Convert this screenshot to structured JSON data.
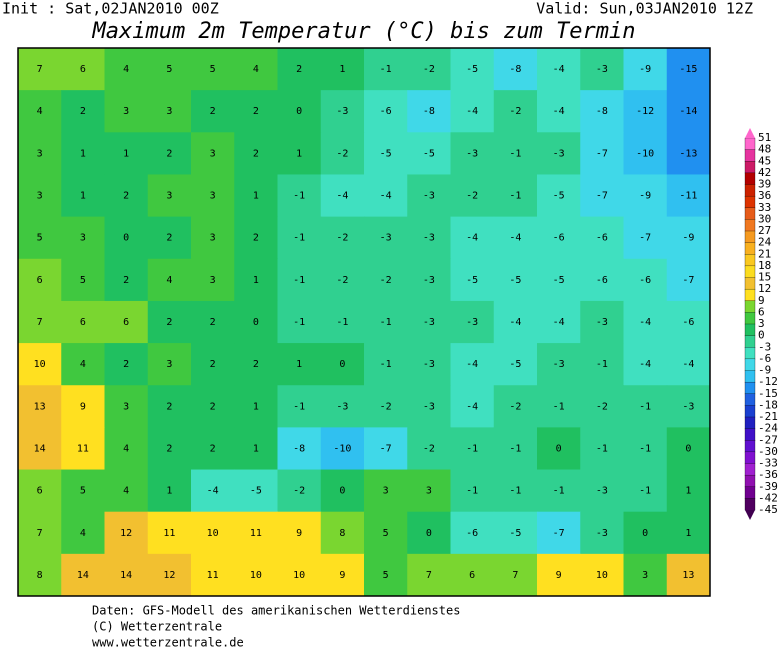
{
  "header": {
    "init": "Init : Sat,02JAN2010 00Z",
    "valid": "Valid: Sun,03JAN2010 12Z",
    "title": "Maximum 2m Temperatur (°C) bis zum Termin"
  },
  "map": {
    "grid": [
      [
        7,
        6,
        4,
        5,
        5,
        4,
        2,
        1,
        -1,
        -2,
        -5,
        -8,
        -4,
        -3,
        -9,
        -15
      ],
      [
        4,
        2,
        3,
        3,
        2,
        2,
        0,
        -3,
        -6,
        -8,
        -4,
        -2,
        -4,
        -8,
        -12,
        -14
      ],
      [
        3,
        1,
        1,
        2,
        3,
        2,
        1,
        -2,
        -5,
        -5,
        -3,
        -1,
        -3,
        -7,
        -10,
        -13
      ],
      [
        3,
        1,
        2,
        3,
        3,
        1,
        -1,
        -4,
        -4,
        -3,
        -2,
        -1,
        -5,
        -7,
        -9,
        -11
      ],
      [
        5,
        3,
        0,
        2,
        3,
        2,
        -1,
        -2,
        -3,
        -3,
        -4,
        -4,
        -6,
        -6,
        -7,
        -9
      ],
      [
        6,
        5,
        2,
        4,
        3,
        1,
        -1,
        -2,
        -2,
        -3,
        -5,
        -5,
        -5,
        -6,
        -6,
        -7
      ],
      [
        7,
        6,
        6,
        2,
        2,
        0,
        -1,
        -1,
        -1,
        -3,
        -3,
        -4,
        -4,
        -3,
        -4,
        -6
      ],
      [
        10,
        4,
        2,
        3,
        2,
        2,
        1,
        0,
        -1,
        -3,
        -4,
        -5,
        -3,
        -1,
        -4,
        -4
      ],
      [
        13,
        9,
        3,
        2,
        2,
        1,
        -1,
        -3,
        -2,
        -3,
        -4,
        -2,
        -1,
        -2,
        -1,
        -3
      ],
      [
        14,
        11,
        4,
        2,
        2,
        1,
        -8,
        -10,
        -7,
        -2,
        -1,
        -1,
        0,
        -1,
        -1,
        0
      ],
      [
        6,
        5,
        4,
        1,
        -4,
        -5,
        -2,
        0,
        3,
        3,
        -1,
        -1,
        -1,
        -3,
        -1,
        1
      ],
      [
        7,
        4,
        12,
        11,
        10,
        11,
        9,
        8,
        5,
        0,
        -6,
        -5,
        -7,
        -3,
        0,
        1
      ],
      [
        8,
        14,
        14,
        12,
        11,
        10,
        10,
        9,
        5,
        7,
        6,
        7,
        9,
        10,
        3,
        13
      ]
    ]
  },
  "legend": {
    "ticks": [
      51,
      48,
      45,
      42,
      39,
      36,
      33,
      30,
      27,
      24,
      21,
      18,
      15,
      12,
      9,
      6,
      3,
      0,
      -3,
      -6,
      -9,
      -12,
      -15,
      -18,
      -21,
      -24,
      -27,
      -30,
      -33,
      -36,
      -39,
      -42,
      -45
    ],
    "colors": [
      "#ff66cc",
      "#e6339f",
      "#cc1a66",
      "#b30000",
      "#cc2200",
      "#dd3300",
      "#e65c1a",
      "#f07820",
      "#f59a20",
      "#f8b020",
      "#fac820",
      "#fbdc20",
      "#f2c030",
      "#ffe020",
      "#7ad630",
      "#40c840",
      "#20c060",
      "#30d090",
      "#40e0c0",
      "#40d8e8",
      "#30c0f0",
      "#2090f0",
      "#2060e0",
      "#1a40d0",
      "#2020c0",
      "#4010c8",
      "#6010d0",
      "#8010d0",
      "#a020d0",
      "#9010b0",
      "#700090",
      "#500060"
    ]
  },
  "footer": {
    "lines": [
      "Daten: GFS-Modell des amerikanischen Wetterdienstes",
      "(C) Wetterzentrale",
      "www.wetterzentrale.de"
    ]
  }
}
